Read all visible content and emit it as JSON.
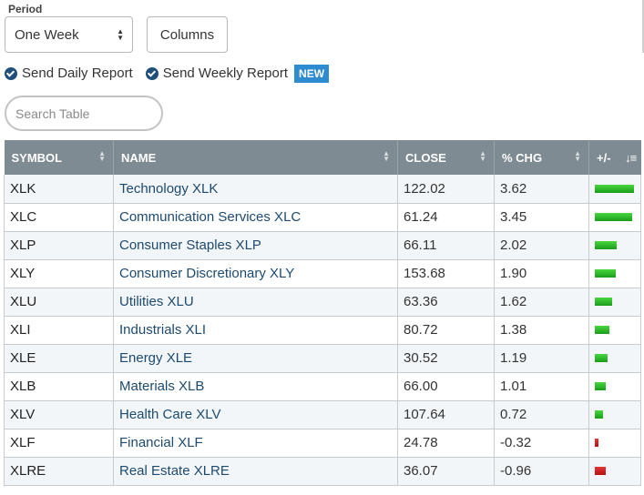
{
  "period": {
    "label": "Period",
    "value": "One Week"
  },
  "columns_button": "Columns",
  "options": [
    {
      "label": "Send Daily Report",
      "checked": true
    },
    {
      "label": "Send Weekly Report",
      "checked": true,
      "badge": "NEW"
    }
  ],
  "search": {
    "placeholder": "Search Table",
    "value": ""
  },
  "table": {
    "headers": [
      "SYMBOL",
      "NAME",
      "CLOSE",
      "% CHG",
      "+/-"
    ],
    "rows": [
      {
        "symbol": "XLK",
        "name": "Technology XLK",
        "close": "122.02",
        "chg": "3.62"
      },
      {
        "symbol": "XLC",
        "name": "Communication Services XLC",
        "close": "61.24",
        "chg": "3.45"
      },
      {
        "symbol": "XLP",
        "name": "Consumer Staples XLP",
        "close": "66.11",
        "chg": "2.02"
      },
      {
        "symbol": "XLY",
        "name": "Consumer Discretionary XLY",
        "close": "153.68",
        "chg": "1.90"
      },
      {
        "symbol": "XLU",
        "name": "Utilities XLU",
        "close": "63.36",
        "chg": "1.62"
      },
      {
        "symbol": "XLI",
        "name": "Industrials XLI",
        "close": "80.72",
        "chg": "1.38"
      },
      {
        "symbol": "XLE",
        "name": "Energy XLE",
        "close": "30.52",
        "chg": "1.19"
      },
      {
        "symbol": "XLB",
        "name": "Materials XLB",
        "close": "66.00",
        "chg": "1.01"
      },
      {
        "symbol": "XLV",
        "name": "Health Care XLV",
        "close": "107.64",
        "chg": "0.72"
      },
      {
        "symbol": "XLF",
        "name": "Financial XLF",
        "close": "24.78",
        "chg": "-0.32"
      },
      {
        "symbol": "XLRE",
        "name": "Real Estate XLRE",
        "close": "36.07",
        "chg": "-0.96"
      }
    ]
  },
  "colors": {
    "header_bg": "#7e8b93",
    "link": "#1d4a70",
    "positive": "#1f9e1f",
    "negative": "#c81e1e",
    "badge": "#2f8bd0"
  }
}
